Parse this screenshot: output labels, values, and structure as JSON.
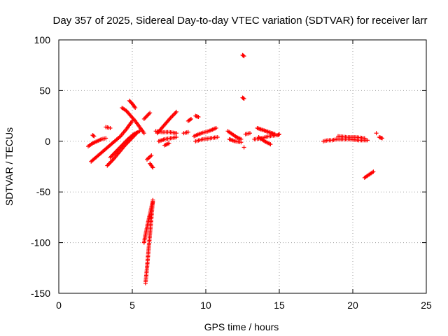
{
  "chart_data": {
    "type": "scatter",
    "title": "Day 357 of 2025, Sidereal Day-to-day VTEC variation (SDTVAR) for receiver larr",
    "xlabel": "GPS time / hours",
    "ylabel": "SDTVAR / TECUs",
    "xlim": [
      0,
      25
    ],
    "ylim": [
      -150,
      100
    ],
    "xticks": [
      0,
      5,
      10,
      15,
      20,
      25
    ],
    "yticks": [
      -150,
      -100,
      -50,
      0,
      50,
      100
    ],
    "grid": true,
    "marker": "plus",
    "color": "#ff0000",
    "segments": [
      {
        "x": [
          2.0,
          2.3,
          2.6,
          2.9,
          3.2
        ],
        "y": [
          -5,
          -2,
          0,
          2,
          3
        ]
      },
      {
        "x": [
          2.2,
          2.6,
          3.0,
          3.4,
          3.8,
          4.2,
          4.6,
          5.0
        ],
        "y": [
          -20,
          -15,
          -10,
          -5,
          0,
          5,
          12,
          20
        ]
      },
      {
        "x": [
          3.3,
          3.7,
          4.1,
          4.5,
          4.9,
          5.3
        ],
        "y": [
          -24,
          -18,
          -11,
          -4,
          2,
          8
        ]
      },
      {
        "x": [
          3.5,
          3.9,
          4.3,
          4.7,
          5.1,
          5.5
        ],
        "y": [
          -16,
          -10,
          -4,
          2,
          7,
          10
        ]
      },
      {
        "x": [
          4.3,
          4.6,
          4.9,
          5.2,
          5.5,
          5.8
        ],
        "y": [
          33,
          30,
          25,
          20,
          14,
          8
        ]
      },
      {
        "x": [
          3.2,
          3.5
        ],
        "y": [
          14,
          13
        ]
      },
      {
        "x": [
          2.3,
          2.4
        ],
        "y": [
          6,
          5
        ]
      },
      {
        "x": [
          4.8,
          5.0,
          5.2
        ],
        "y": [
          40,
          37,
          33
        ]
      },
      {
        "x": [
          5.8,
          6.0,
          6.2
        ],
        "y": [
          22,
          25,
          28
        ]
      },
      {
        "x": [
          5.9,
          6.0,
          6.1,
          6.2,
          6.3,
          6.4
        ],
        "y": [
          -140,
          -125,
          -108,
          -92,
          -75,
          -58
        ]
      },
      {
        "x": [
          5.8,
          5.9,
          6.0,
          6.1,
          6.2,
          6.3,
          6.4
        ],
        "y": [
          -100,
          -92,
          -85,
          -78,
          -72,
          -65,
          -60
        ]
      },
      {
        "x": [
          6.0,
          6.3
        ],
        "y": [
          -18,
          -14
        ]
      },
      {
        "x": [
          6.2,
          6.4
        ],
        "y": [
          -22,
          -26
        ]
      },
      {
        "x": [
          6.7,
          7.0,
          7.3,
          7.6,
          8.0
        ],
        "y": [
          8,
          13,
          18,
          23,
          29
        ]
      },
      {
        "x": [
          6.6,
          7.0,
          7.5,
          8.0
        ],
        "y": [
          10,
          9,
          9,
          8
        ]
      },
      {
        "x": [
          6.8,
          7.2,
          7.6,
          8.0
        ],
        "y": [
          0,
          2,
          3,
          4
        ]
      },
      {
        "x": [
          7.2,
          7.5
        ],
        "y": [
          -4,
          -2
        ]
      },
      {
        "x": [
          8.8,
          9.0
        ],
        "y": [
          20,
          22
        ]
      },
      {
        "x": [
          9.3,
          9.5
        ],
        "y": [
          25,
          24
        ]
      },
      {
        "x": [
          8.5,
          8.8
        ],
        "y": [
          8,
          9
        ]
      },
      {
        "x": [
          9.2,
          9.7,
          10.2,
          10.7
        ],
        "y": [
          5,
          8,
          10,
          13
        ]
      },
      {
        "x": [
          9.3,
          9.8,
          10.3,
          10.8
        ],
        "y": [
          0,
          2,
          3,
          4
        ]
      },
      {
        "x": [
          11.5,
          11.8,
          12.1,
          12.4
        ],
        "y": [
          10,
          7,
          4,
          2
        ]
      },
      {
        "x": [
          11.6,
          12.0,
          12.4
        ],
        "y": [
          2,
          0,
          -1
        ]
      },
      {
        "x": [
          12.5,
          12.6
        ],
        "y": [
          85,
          84
        ]
      },
      {
        "x": [
          12.5,
          12.6
        ],
        "y": [
          43,
          42
        ]
      },
      {
        "x": [
          12.6
        ],
        "y": [
          -6
        ]
      },
      {
        "x": [
          12.7,
          13.0
        ],
        "y": [
          7,
          8
        ]
      },
      {
        "x": [
          13.3,
          13.8,
          14.3,
          14.8
        ],
        "y": [
          2,
          3,
          5,
          6
        ]
      },
      {
        "x": [
          13.5,
          13.9,
          14.3,
          14.7
        ],
        "y": [
          13,
          11,
          9,
          7
        ]
      },
      {
        "x": [
          13.6,
          14.0,
          14.4
        ],
        "y": [
          4,
          0,
          -3
        ]
      },
      {
        "x": [
          14.9,
          15.0
        ],
        "y": [
          6,
          7
        ]
      },
      {
        "x": [
          18.0,
          18.3,
          18.6,
          18.9,
          19.2
        ],
        "y": [
          0,
          1,
          1,
          2,
          2
        ]
      },
      {
        "x": [
          19.0,
          19.6,
          20.2,
          20.8
        ],
        "y": [
          5,
          4,
          4,
          3
        ]
      },
      {
        "x": [
          19.2,
          19.8,
          20.4,
          21.0
        ],
        "y": [
          2,
          2,
          1,
          1
        ]
      },
      {
        "x": [
          20.8,
          21.1,
          21.4
        ],
        "y": [
          -36,
          -33,
          -30
        ]
      },
      {
        "x": [
          21.6
        ],
        "y": [
          8
        ]
      },
      {
        "x": [
          21.8,
          22.0
        ],
        "y": [
          4,
          3
        ]
      }
    ]
  }
}
